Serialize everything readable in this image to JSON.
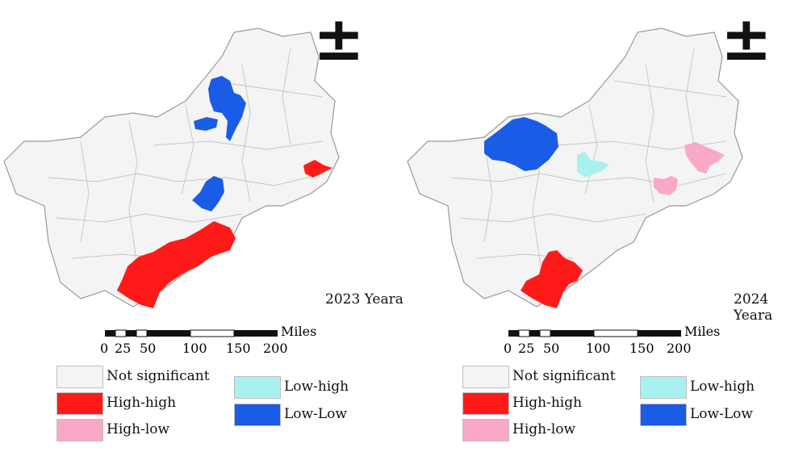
{
  "north_symbol": "±",
  "panels": [
    {
      "year": "2023 Yeara"
    },
    {
      "year": "2024 Yeara"
    }
  ],
  "scale": {
    "unit": "Miles",
    "ticks": [
      "0",
      "25",
      "50",
      "100",
      "150",
      "200"
    ]
  },
  "legend": [
    {
      "label": "Not significant",
      "color": "#f4f4f4"
    },
    {
      "label": "High-high",
      "color": "#ff1a1a"
    },
    {
      "label": "High-low",
      "color": "#f9a8c8"
    },
    {
      "label": "Low-high",
      "color": "#a8f1ef"
    },
    {
      "label": "Low-Low",
      "color": "#1a5ce6"
    }
  ],
  "clusters": {
    "2023": [
      "Low-Low",
      "Low-Low",
      "Low-Low",
      "High-high",
      "High-high"
    ],
    "2024": [
      "Low-Low",
      "Low-high",
      "High-low",
      "High-low",
      "High-high"
    ]
  }
}
